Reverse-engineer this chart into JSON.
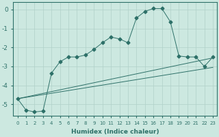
{
  "xlabel": "Humidex (Indice chaleur)",
  "ylabel": "",
  "xlim": [
    -0.5,
    23.5
  ],
  "ylim": [
    -5.6,
    0.4
  ],
  "yticks": [
    0,
    -1,
    -2,
    -3,
    -4,
    -5
  ],
  "xticks": [
    0,
    1,
    2,
    3,
    4,
    5,
    6,
    7,
    8,
    9,
    10,
    11,
    12,
    13,
    14,
    15,
    16,
    17,
    18,
    19,
    20,
    21,
    22,
    23
  ],
  "bg_color": "#cce8e0",
  "line_color": "#2d7068",
  "grid_color": "#b0d0c8",
  "series": {
    "line_zigzag": {
      "x": [
        0,
        1,
        2,
        3,
        4,
        5,
        6,
        7,
        8,
        9,
        10,
        11,
        12,
        13,
        14,
        15,
        16,
        17,
        18,
        19,
        20,
        21,
        22,
        23
      ],
      "y": [
        -4.7,
        -5.3,
        -5.4,
        -5.35,
        -3.35,
        -2.75,
        -2.5,
        -2.5,
        -2.4,
        -2.1,
        -1.75,
        -1.45,
        -1.55,
        -1.75,
        -0.45,
        -0.1,
        0.05,
        0.05,
        -0.65,
        -2.45,
        -2.5,
        -2.5,
        -3.0,
        -2.5
      ],
      "marker": "D",
      "markersize": 2.5
    },
    "line_upper": {
      "x": [
        0,
        2,
        3,
        4,
        5,
        6,
        7,
        8,
        9,
        10,
        11,
        12,
        13,
        14,
        15,
        16,
        17,
        18
      ],
      "y": [
        -4.7,
        -5.35,
        -5.35,
        -3.35,
        -2.75,
        -2.5,
        -2.5,
        -2.4,
        -2.1,
        -1.75,
        -1.45,
        -1.55,
        -1.75,
        -0.45,
        -0.1,
        0.05,
        0.05,
        -0.65
      ],
      "marker": "D",
      "markersize": 2.5
    },
    "line_straight1": {
      "x": [
        0,
        23
      ],
      "y": [
        -4.7,
        -2.55
      ],
      "marker": null,
      "markersize": 0
    },
    "line_straight2": {
      "x": [
        0,
        23
      ],
      "y": [
        -4.7,
        -3.05
      ],
      "marker": null,
      "markersize": 0
    }
  }
}
